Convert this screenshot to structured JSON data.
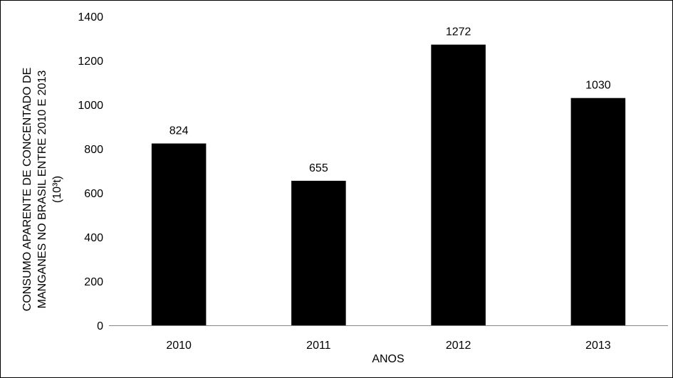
{
  "chart_data": {
    "type": "bar",
    "categories": [
      "2010",
      "2011",
      "2012",
      "2013"
    ],
    "values": [
      824,
      655,
      1272,
      1030
    ],
    "data_labels": [
      "824",
      "655",
      "1272",
      "1030"
    ],
    "title": "",
    "xlabel": "ANOS",
    "ylabel_lines": [
      "CONSUMO APARENTE DE CONCENTADO DE",
      "MANGANES NO BRASIL ENTRE 2010 E 2013",
      "(10³t)"
    ],
    "ylim": [
      0,
      1400
    ],
    "yticks": [
      0,
      200,
      400,
      600,
      800,
      1000,
      1200,
      1400
    ],
    "ytick_labels": [
      "0",
      "200",
      "400",
      "600",
      "800",
      "1000",
      "1200",
      "1400"
    ],
    "grid": false,
    "legend": "none",
    "bar_color": "#000000"
  }
}
